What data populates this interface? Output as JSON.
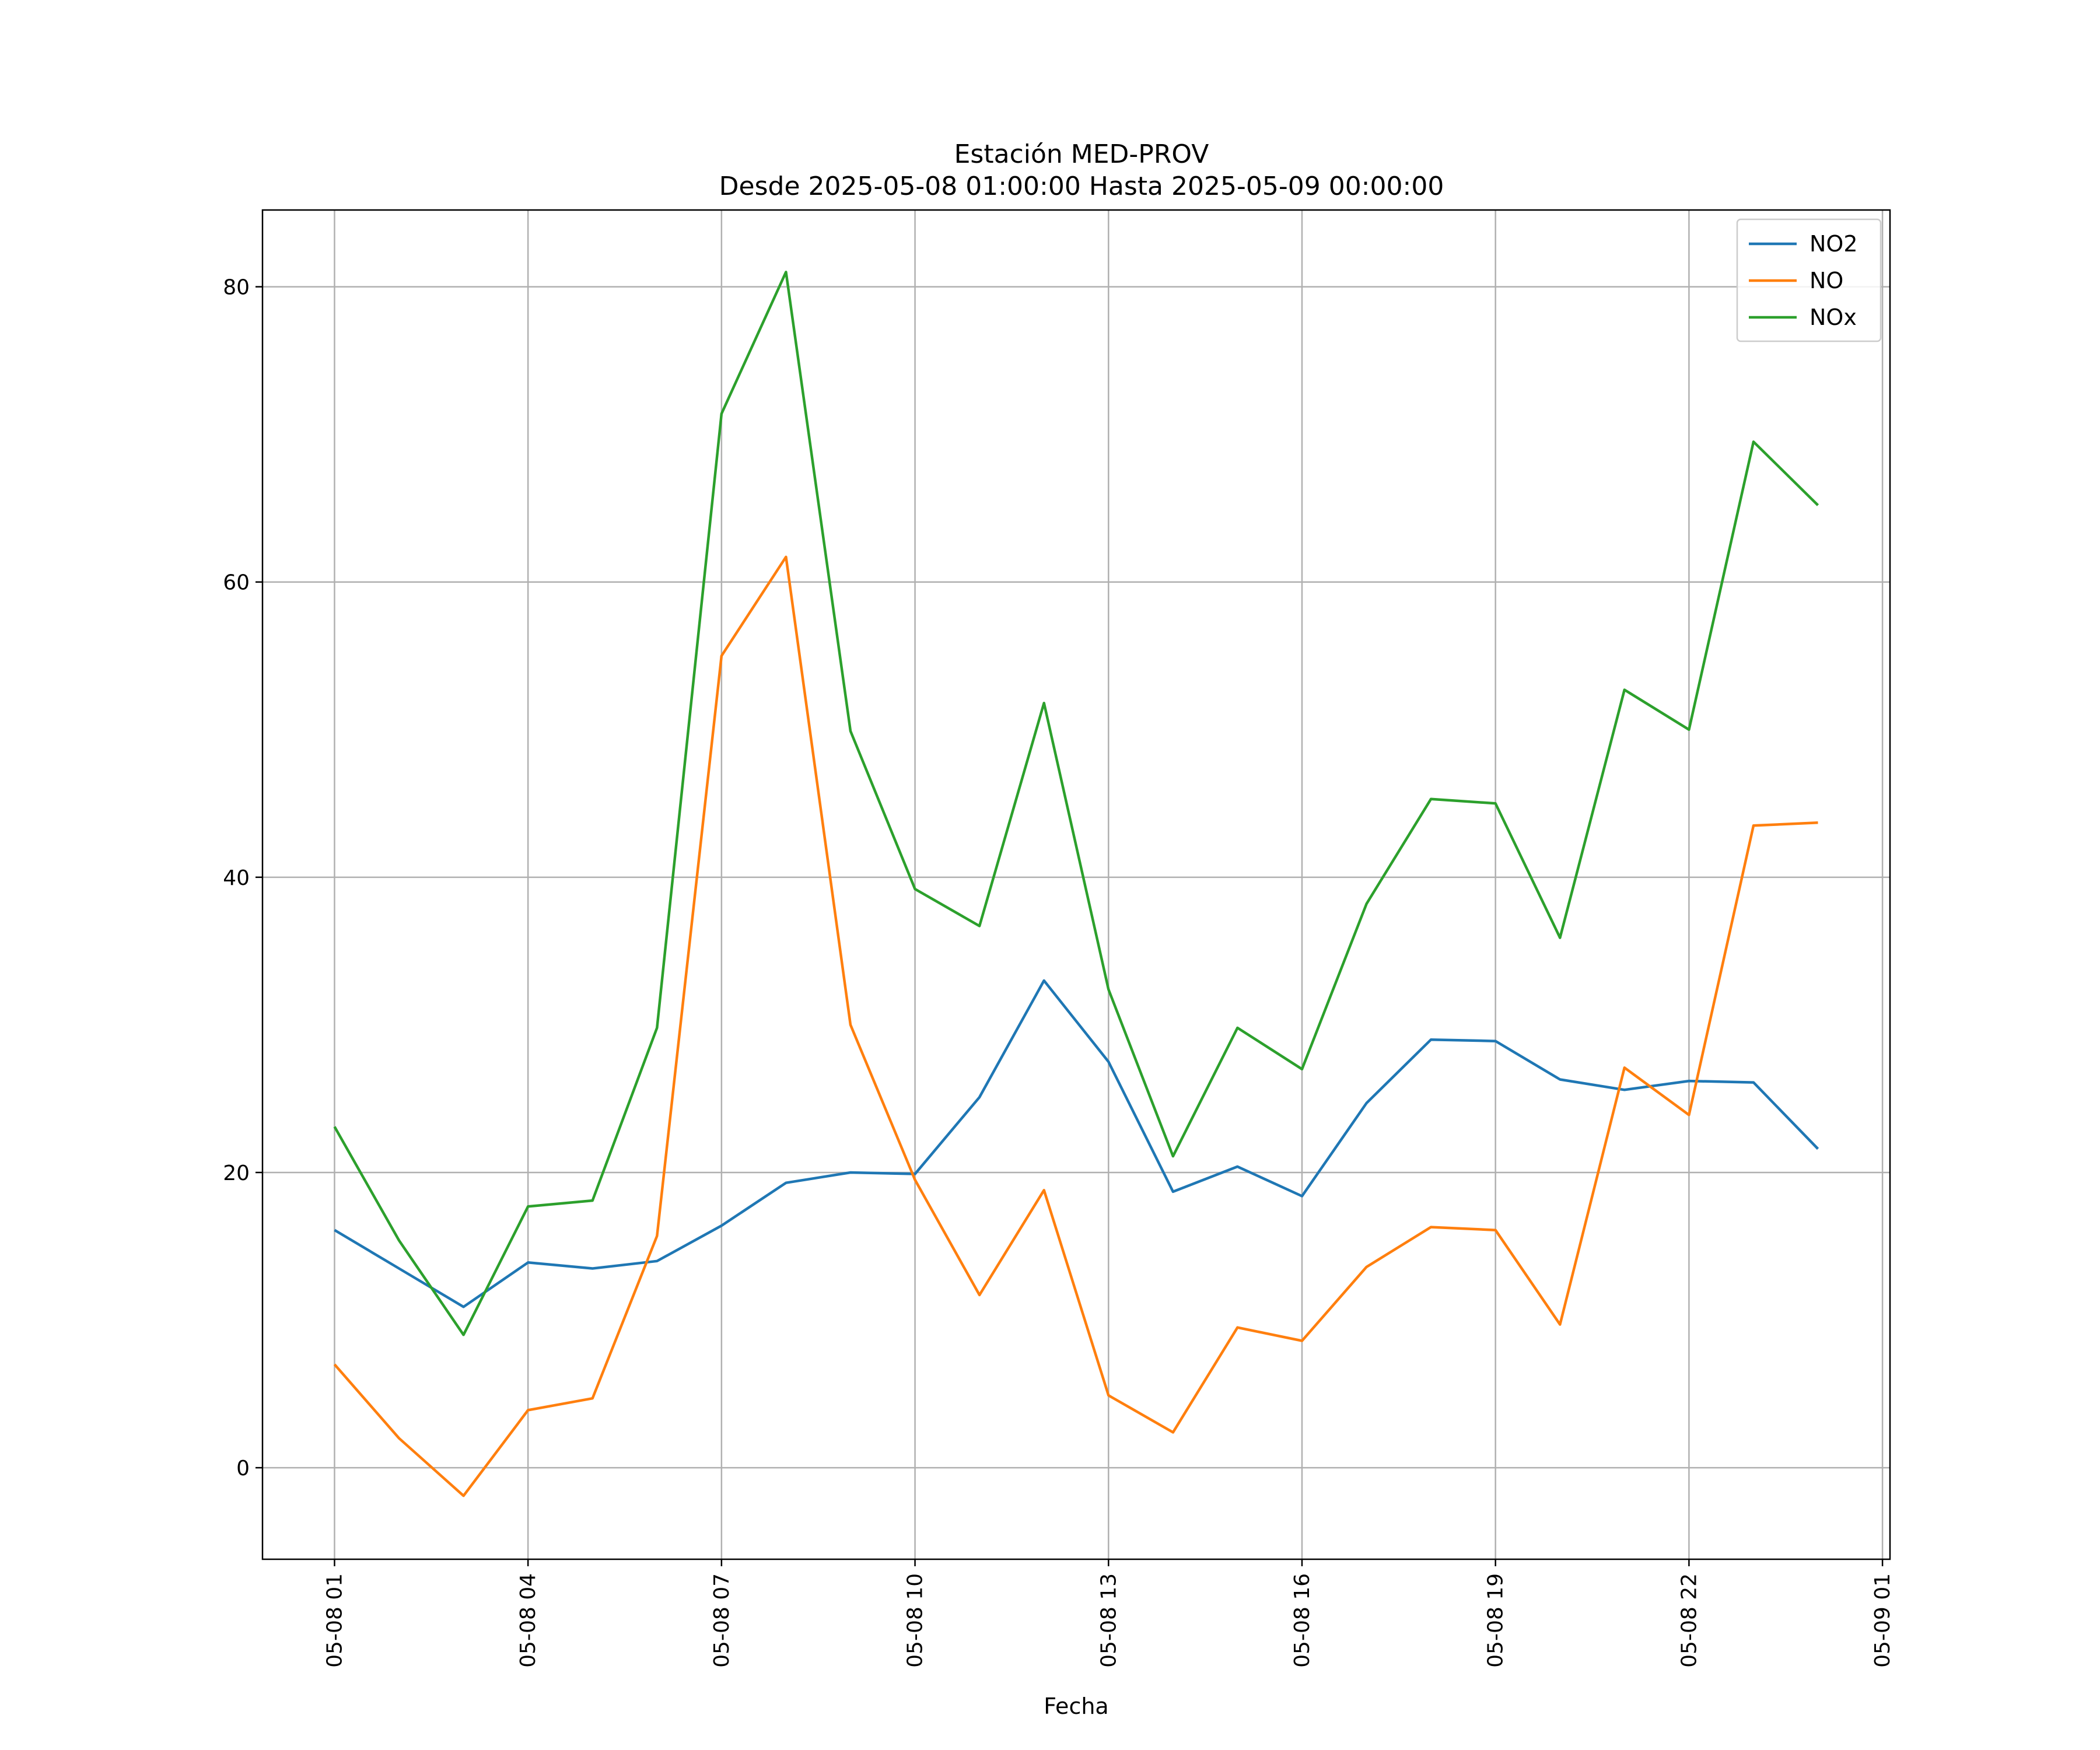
{
  "chart_data": {
    "type": "line",
    "title": "Estación MED-PROV",
    "subtitle": "Desde 2025-05-08 01:00:00 Hasta 2025-05-09 00:00:00",
    "xlabel": "Fecha",
    "ylabel": "",
    "x": [
      "2025-05-08 01:00",
      "2025-05-08 02:00",
      "2025-05-08 03:00",
      "2025-05-08 04:00",
      "2025-05-08 05:00",
      "2025-05-08 06:00",
      "2025-05-08 07:00",
      "2025-05-08 08:00",
      "2025-05-08 09:00",
      "2025-05-08 10:00",
      "2025-05-08 11:00",
      "2025-05-08 12:00",
      "2025-05-08 13:00",
      "2025-05-08 14:00",
      "2025-05-08 15:00",
      "2025-05-08 16:00",
      "2025-05-08 17:00",
      "2025-05-08 18:00",
      "2025-05-08 19:00",
      "2025-05-08 20:00",
      "2025-05-08 21:00",
      "2025-05-08 22:00",
      "2025-05-08 23:00",
      "2025-05-09 00:00"
    ],
    "x_ticks": [
      "05-08 01",
      "05-08 04",
      "05-08 07",
      "05-08 10",
      "05-08 13",
      "05-08 16",
      "05-08 19",
      "05-08 22",
      "05-09 01"
    ],
    "xlim": [
      "2025-05-07 23:53",
      "2025-05-09 01:07"
    ],
    "y_ticks": [
      0,
      20,
      40,
      60,
      80
    ],
    "ylim": [
      -6.2,
      85.2
    ],
    "grid": true,
    "legend_position": "top-right",
    "series": [
      {
        "name": "NO2",
        "color": "#1f77b4",
        "values": [
          16.1,
          13.5,
          10.9,
          13.9,
          13.5,
          14.0,
          16.4,
          19.3,
          20.0,
          19.9,
          25.1,
          33.0,
          27.5,
          18.7,
          20.4,
          18.4,
          24.7,
          29.0,
          28.9,
          26.3,
          25.6,
          26.2,
          26.1,
          21.6
        ]
      },
      {
        "name": "NO",
        "color": "#ff7f0e",
        "values": [
          7.0,
          2.0,
          -1.9,
          3.9,
          4.7,
          15.7,
          55.0,
          61.7,
          30.0,
          19.5,
          11.7,
          18.8,
          4.9,
          2.4,
          9.5,
          8.6,
          13.6,
          16.3,
          16.1,
          9.7,
          27.1,
          23.9,
          43.5,
          43.7
        ]
      },
      {
        "name": "NOx",
        "color": "#2ca02c",
        "values": [
          23.1,
          15.4,
          9.0,
          17.7,
          18.1,
          29.8,
          71.4,
          81.0,
          49.9,
          39.2,
          36.7,
          51.8,
          32.4,
          21.1,
          29.8,
          27.0,
          38.2,
          45.3,
          45.0,
          35.9,
          52.7,
          50.0,
          69.5,
          65.2
        ]
      }
    ]
  }
}
